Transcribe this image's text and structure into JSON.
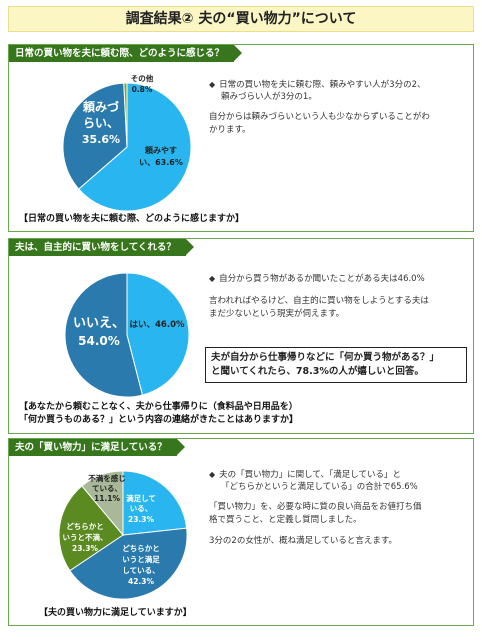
{
  "page_title": "調査結果② 夫の“買い物力”について",
  "section1": {
    "header": "日常の買い物を夫に頼む際、どのように感じる？",
    "pie": {
      "slices": [
        {
          "label": "頼みやすい",
          "value": 63.6,
          "value_label": "63.6%",
          "color": "#29b6f0"
        },
        {
          "label": "頼みづらい",
          "value": 35.6,
          "value_label": "35.6%",
          "color": "#2a7aae"
        },
        {
          "label": "その他",
          "value": 0.8,
          "value_label": "0.8%",
          "color": "#77a83a"
        }
      ]
    },
    "bullet_line1": "日常の買い物を夫に頼む際、頼みやすい人が3分の2、",
    "bullet_line2": "頼みづらい人が3分の1。",
    "note_line1": "自分からは頼みづらいという人も少なからずいることがわ",
    "note_line2": "かります。",
    "caption": "【日常の買い物を夫に頼む際、どのように感じますか】"
  },
  "section2": {
    "header": "夫は、自主的に買い物をしてくれる？",
    "pie": {
      "slices": [
        {
          "label": "はい",
          "value": 46.0,
          "value_label": "46.0%",
          "color": "#29b6f0"
        },
        {
          "label": "いいえ",
          "value": 54.0,
          "value_label": "54.0%",
          "color": "#2a7aae"
        }
      ]
    },
    "bullet_line1": "自分から買う物があるか聞いたことがある夫は46.0%",
    "note_line1": "言われればやるけど、自主的に買い物をしようとする夫は",
    "note_line2": "まだ少ないという現実が伺えます。",
    "callout_line1": "夫が自分から仕事帰りなどに「何か買う物がある？」",
    "callout_line2": "と聞いてくれたら、78.3%の人が嬉しいと回答。",
    "caption_line1": "【あなたから頼むことなく、夫から仕事帰りに（食料品や日用品を）",
    "caption_line2": "「何か買うものある？」という内容の連絡がきたことはありますか】"
  },
  "section3": {
    "header": "夫の「買い物力」に満足している？",
    "pie": {
      "slices": [
        {
          "label": "満足している",
          "value": 23.3,
          "value_label": "23.3%",
          "color": "#29b6f0"
        },
        {
          "label": "どちらかというと満足している",
          "value": 42.3,
          "value_label": "42.3%",
          "color": "#2a7aae"
        },
        {
          "label": "どちらかというと不満",
          "value": 23.3,
          "value_label": "23.3%",
          "color": "#5b8a21"
        },
        {
          "label": "不満を感じている",
          "value": 11.1,
          "value_label": "11.1%",
          "color": "#a9b898"
        }
      ]
    },
    "bullet_line1": "夫の「買い物力」に関して、「満足している」と",
    "bullet_line2": "「どちらかというと満足している」の合計で65.6%",
    "note1_line1": "「買い物力」を、必要な時に質の良い商品をお値打ち価",
    "note1_line2": "格で買うこと、と定義し質問しました。",
    "note2": "3分の2の女性が、概ね満足していると言えます。",
    "caption": "【夫の買い物力に満足していますか】"
  }
}
